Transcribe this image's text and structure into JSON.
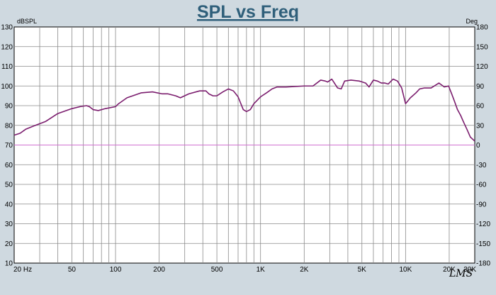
{
  "chart_data": {
    "type": "line",
    "title": "SPL vs Freq",
    "y_left_unit": "dBSPL",
    "y_right_unit": "Deg",
    "xscale": "log",
    "xlim": [
      20,
      30000
    ],
    "ylim_left": [
      10,
      130
    ],
    "ylim_right": [
      -180,
      180
    ],
    "grid": true,
    "x_tick_values": [
      20,
      50,
      100,
      200,
      500,
      1000,
      2000,
      5000,
      10000,
      20000,
      30000
    ],
    "x_tick_labels": [
      "20 Hz",
      "50",
      "100",
      "200",
      "500",
      "1K",
      "2K",
      "5K",
      "10K",
      "20K",
      "30K"
    ],
    "y_left_ticks": [
      10,
      20,
      30,
      40,
      50,
      60,
      70,
      80,
      90,
      100,
      110,
      120,
      130
    ],
    "y_right_ticks": [
      -180,
      -150,
      -120,
      -90,
      -60,
      -30,
      0,
      30,
      60,
      90,
      120,
      150,
      180
    ],
    "series": [
      {
        "color": "#7b1d6e",
        "x": [
          20,
          22,
          24,
          28,
          33,
          40,
          50,
          57,
          63,
          66,
          70,
          76,
          85,
          100,
          105,
          120,
          150,
          180,
          210,
          230,
          260,
          280,
          320,
          380,
          420,
          440,
          470,
          500,
          550,
          600,
          650,
          700,
          760,
          800,
          850,
          900,
          1000,
          1100,
          1200,
          1300,
          1500,
          2000,
          2300,
          2600,
          2800,
          2900,
          3100,
          3400,
          3600,
          3800,
          4200,
          4800,
          5300,
          5600,
          6000,
          6400,
          6800,
          7200,
          7600,
          8200,
          8800,
          9400,
          10000,
          10800,
          11800,
          12500,
          13500,
          15000,
          17000,
          18500,
          19800,
          20800,
          21800,
          22800,
          24000,
          25000,
          26500,
          28000,
          30000
        ],
        "y": [
          75,
          76,
          78,
          80,
          82,
          86,
          88.5,
          89.5,
          90,
          89.5,
          88,
          87.5,
          88.5,
          89.5,
          91,
          94,
          96.5,
          97,
          96,
          96,
          95,
          94,
          96,
          97.5,
          97.5,
          96,
          95,
          95,
          97,
          98.5,
          97.5,
          94.5,
          88,
          87,
          88,
          91,
          94.5,
          96.5,
          98.5,
          99.5,
          99.5,
          100,
          100,
          103,
          102.5,
          102,
          103.5,
          99,
          98.5,
          102.5,
          103,
          102.5,
          101.5,
          99.5,
          103,
          102.5,
          101.5,
          101.5,
          101,
          103.5,
          102.5,
          99,
          91,
          94,
          96.5,
          98.5,
          99,
          99,
          101.5,
          99.5,
          100,
          96,
          92,
          88,
          85,
          82,
          78,
          74,
          72
        ],
        "y_right_const": 0
      }
    ]
  },
  "branding": {
    "logo_text": "LMS"
  }
}
